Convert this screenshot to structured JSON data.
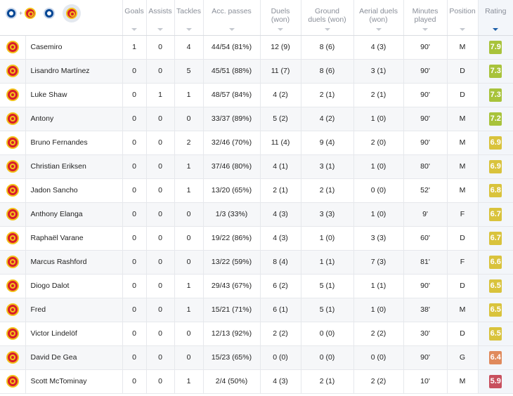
{
  "columns": [
    {
      "key": "teams",
      "label": ""
    },
    {
      "key": "goals",
      "label": "Goals"
    },
    {
      "key": "assists",
      "label": "Assists"
    },
    {
      "key": "tackles",
      "label": "Tackles"
    },
    {
      "key": "passes",
      "label": "Acc. passes"
    },
    {
      "key": "duels",
      "label": "Duels (won)"
    },
    {
      "key": "ground",
      "label": "Ground duels (won)"
    },
    {
      "key": "aerial",
      "label": "Aerial duels (won)"
    },
    {
      "key": "minutes",
      "label": "Minutes played"
    },
    {
      "key": "position",
      "label": "Position"
    },
    {
      "key": "rating",
      "label": "Rating"
    }
  ],
  "header_icons": [
    "chelsea-crest-icon",
    "plus-icon",
    "man-united-crest-icon",
    "chelsea-crest-icon",
    "man-united-crest-icon"
  ],
  "team_icon": "man-united-crest-icon",
  "colors": {
    "rating_high": "#a8c33b",
    "rating_mid": "#d9c33c",
    "rating_low": "#e08a5c",
    "rating_poor": "#c8505e",
    "sort_active": "#1d5fa8"
  },
  "players": [
    {
      "name": "Casemiro",
      "goals": "1",
      "assists": "0",
      "tackles": "4",
      "passes": "44/54 (81%)",
      "duels": "12 (9)",
      "ground": "8 (6)",
      "aerial": "4 (3)",
      "minutes": "90'",
      "position": "M",
      "rating": "7.9",
      "tier": "high"
    },
    {
      "name": "Lisandro Martínez",
      "goals": "0",
      "assists": "0",
      "tackles": "5",
      "passes": "45/51 (88%)",
      "duels": "11 (7)",
      "ground": "8 (6)",
      "aerial": "3 (1)",
      "minutes": "90'",
      "position": "D",
      "rating": "7.3",
      "tier": "high"
    },
    {
      "name": "Luke Shaw",
      "goals": "0",
      "assists": "1",
      "tackles": "1",
      "passes": "48/57 (84%)",
      "duels": "4 (2)",
      "ground": "2 (1)",
      "aerial": "2 (1)",
      "minutes": "90'",
      "position": "D",
      "rating": "7.3",
      "tier": "high"
    },
    {
      "name": "Antony",
      "goals": "0",
      "assists": "0",
      "tackles": "0",
      "passes": "33/37 (89%)",
      "duels": "5 (2)",
      "ground": "4 (2)",
      "aerial": "1 (0)",
      "minutes": "90'",
      "position": "M",
      "rating": "7.2",
      "tier": "high"
    },
    {
      "name": "Bruno Fernandes",
      "goals": "0",
      "assists": "0",
      "tackles": "2",
      "passes": "32/46 (70%)",
      "duels": "11 (4)",
      "ground": "9 (4)",
      "aerial": "2 (0)",
      "minutes": "90'",
      "position": "M",
      "rating": "6.9",
      "tier": "mid"
    },
    {
      "name": "Christian Eriksen",
      "goals": "0",
      "assists": "0",
      "tackles": "1",
      "passes": "37/46 (80%)",
      "duels": "4 (1)",
      "ground": "3 (1)",
      "aerial": "1 (0)",
      "minutes": "80'",
      "position": "M",
      "rating": "6.9",
      "tier": "mid"
    },
    {
      "name": "Jadon Sancho",
      "goals": "0",
      "assists": "0",
      "tackles": "1",
      "passes": "13/20 (65%)",
      "duels": "2 (1)",
      "ground": "2 (1)",
      "aerial": "0 (0)",
      "minutes": "52'",
      "position": "M",
      "rating": "6.8",
      "tier": "mid"
    },
    {
      "name": "Anthony Elanga",
      "goals": "0",
      "assists": "0",
      "tackles": "0",
      "passes": "1/3 (33%)",
      "duels": "4 (3)",
      "ground": "3 (3)",
      "aerial": "1 (0)",
      "minutes": "9'",
      "position": "F",
      "rating": "6.7",
      "tier": "mid"
    },
    {
      "name": "Raphaël Varane",
      "goals": "0",
      "assists": "0",
      "tackles": "0",
      "passes": "19/22 (86%)",
      "duels": "4 (3)",
      "ground": "1 (0)",
      "aerial": "3 (3)",
      "minutes": "60'",
      "position": "D",
      "rating": "6.7",
      "tier": "mid"
    },
    {
      "name": "Marcus Rashford",
      "goals": "0",
      "assists": "0",
      "tackles": "0",
      "passes": "13/22 (59%)",
      "duels": "8 (4)",
      "ground": "1 (1)",
      "aerial": "7 (3)",
      "minutes": "81'",
      "position": "F",
      "rating": "6.6",
      "tier": "mid"
    },
    {
      "name": "Diogo Dalot",
      "goals": "0",
      "assists": "0",
      "tackles": "1",
      "passes": "29/43 (67%)",
      "duels": "6 (2)",
      "ground": "5 (1)",
      "aerial": "1 (1)",
      "minutes": "90'",
      "position": "D",
      "rating": "6.5",
      "tier": "mid"
    },
    {
      "name": "Fred",
      "goals": "0",
      "assists": "0",
      "tackles": "1",
      "passes": "15/21 (71%)",
      "duels": "6 (1)",
      "ground": "5 (1)",
      "aerial": "1 (0)",
      "minutes": "38'",
      "position": "M",
      "rating": "6.5",
      "tier": "mid"
    },
    {
      "name": "Victor Lindelöf",
      "goals": "0",
      "assists": "0",
      "tackles": "0",
      "passes": "12/13 (92%)",
      "duels": "2 (2)",
      "ground": "0 (0)",
      "aerial": "2 (2)",
      "minutes": "30'",
      "position": "D",
      "rating": "6.5",
      "tier": "mid"
    },
    {
      "name": "David De Gea",
      "goals": "0",
      "assists": "0",
      "tackles": "0",
      "passes": "15/23 (65%)",
      "duels": "0 (0)",
      "ground": "0 (0)",
      "aerial": "0 (0)",
      "minutes": "90'",
      "position": "G",
      "rating": "6.4",
      "tier": "low"
    },
    {
      "name": "Scott McTominay",
      "goals": "0",
      "assists": "0",
      "tackles": "1",
      "passes": "2/4 (50%)",
      "duels": "4 (3)",
      "ground": "2 (1)",
      "aerial": "2 (2)",
      "minutes": "10'",
      "position": "M",
      "rating": "5.9",
      "tier": "poor"
    }
  ]
}
